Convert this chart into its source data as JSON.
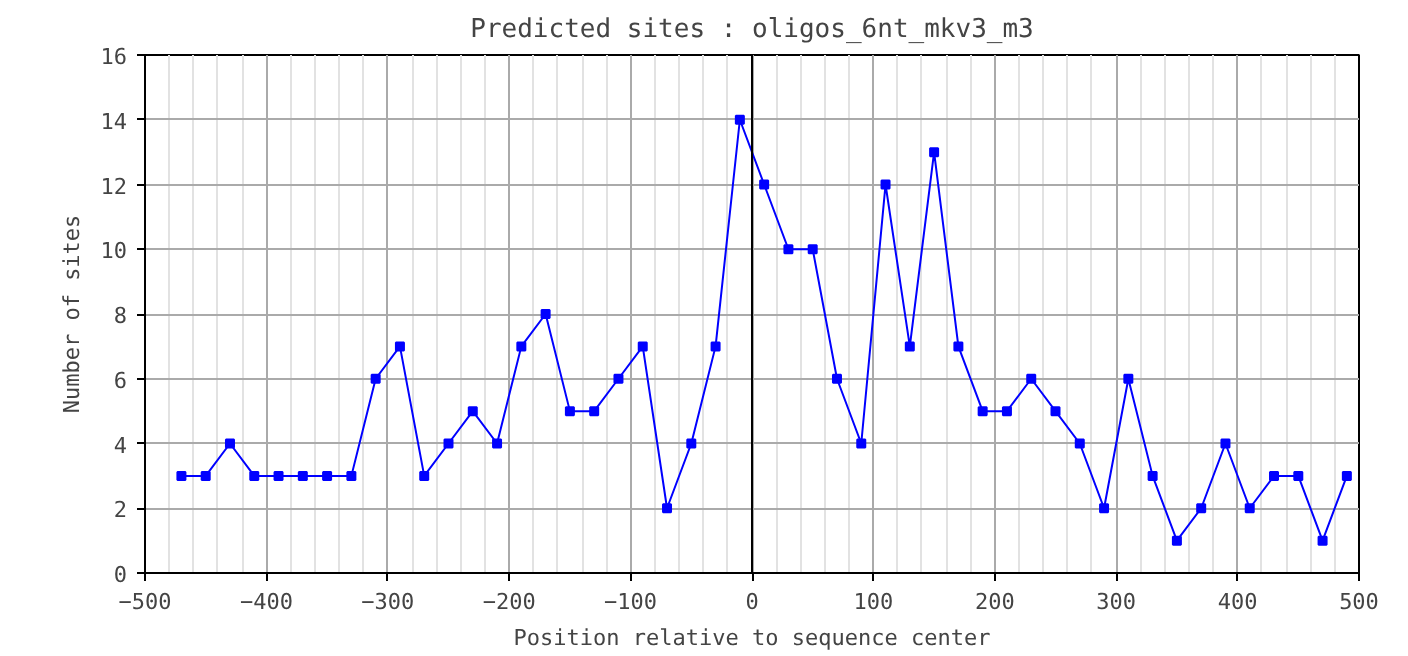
{
  "chart_data": {
    "type": "line",
    "title": "Predicted sites : oligos_6nt_mkv3_m3",
    "xlabel": "Position relative to sequence center",
    "ylabel": "Number of sites",
    "x": [
      -470,
      -450,
      -430,
      -410,
      -390,
      -370,
      -350,
      -330,
      -310,
      -290,
      -270,
      -250,
      -230,
      -210,
      -190,
      -170,
      -150,
      -130,
      -110,
      -90,
      -70,
      -50,
      -30,
      -10,
      10,
      30,
      50,
      70,
      90,
      110,
      130,
      150,
      170,
      190,
      210,
      230,
      250,
      270,
      290,
      310,
      330,
      350,
      370,
      390,
      410,
      430,
      450,
      470,
      490
    ],
    "series": [
      {
        "color": "#0000ff",
        "values": [
          3,
          3,
          4,
          3,
          3,
          3,
          3,
          3,
          6,
          7,
          3,
          4,
          5,
          4,
          7,
          8,
          5,
          5,
          6,
          7,
          2,
          4,
          7,
          14,
          12,
          10,
          10,
          6,
          4,
          12,
          7,
          13,
          7,
          5,
          5,
          6,
          5,
          4,
          2,
          6,
          3,
          1,
          2,
          4,
          2,
          3,
          3,
          1,
          3
        ]
      }
    ],
    "xlim": [
      -500,
      500
    ],
    "xticks": [
      -500,
      -400,
      -300,
      -200,
      -100,
      0,
      100,
      200,
      300,
      400,
      500
    ],
    "ylim": [
      0,
      16
    ],
    "yticks": [
      0,
      2,
      4,
      6,
      8,
      10,
      12,
      14,
      16
    ],
    "ref_lines": [
      {
        "axis": "x",
        "value": 0,
        "color": "#000000"
      }
    ],
    "grid": true,
    "marker": "square",
    "line_style": "solid"
  }
}
